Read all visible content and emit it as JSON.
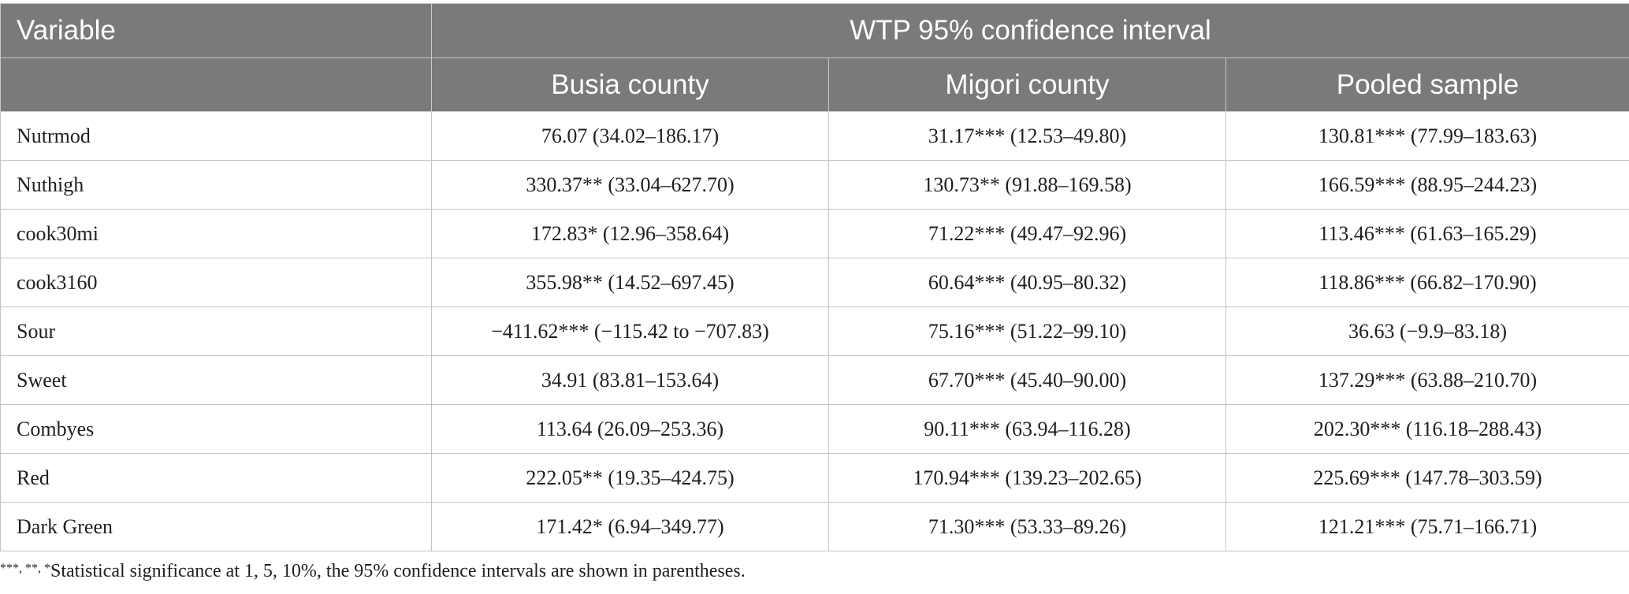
{
  "table": {
    "header_row1": {
      "variable": "Variable",
      "group": "WTP 95% confidence interval"
    },
    "header_row2": [
      "Busia county",
      "Migori county",
      "Pooled sample"
    ],
    "rows": [
      {
        "variable": "Nutrmod",
        "busia": "76.07 (34.02–186.17)",
        "migori": "31.17*** (12.53–49.80)",
        "pooled": "130.81*** (77.99–183.63)"
      },
      {
        "variable": "Nuthigh",
        "busia": "330.37** (33.04–627.70)",
        "migori": "130.73** (91.88–169.58)",
        "pooled": "166.59*** (88.95–244.23)"
      },
      {
        "variable": "cook30mi",
        "busia": "172.83* (12.96–358.64)",
        "migori": "71.22*** (49.47–92.96)",
        "pooled": "113.46*** (61.63–165.29)"
      },
      {
        "variable": "cook3160",
        "busia": "355.98** (14.52–697.45)",
        "migori": "60.64*** (40.95–80.32)",
        "pooled": "118.86*** (66.82–170.90)"
      },
      {
        "variable": "Sour",
        "busia": "−411.62*** (−115.42 to −707.83)",
        "migori": "75.16*** (51.22–99.10)",
        "pooled": "36.63 (−9.9–83.18)"
      },
      {
        "variable": "Sweet",
        "busia": "34.91 (83.81–153.64)",
        "migori": "67.70*** (45.40–90.00)",
        "pooled": "137.29*** (63.88–210.70)"
      },
      {
        "variable": "Combyes",
        "busia": "113.64 (26.09–253.36)",
        "migori": "90.11*** (63.94–116.28)",
        "pooled": "202.30*** (116.18–288.43)"
      },
      {
        "variable": "Red",
        "busia": "222.05** (19.35–424.75)",
        "migori": "170.94*** (139.23–202.65)",
        "pooled": "225.69*** (147.78–303.59)"
      },
      {
        "variable": "Dark Green",
        "busia": "171.42* (6.94–349.77)",
        "migori": "71.30*** (53.33–89.26)",
        "pooled": "121.21*** (75.71–166.71)"
      }
    ]
  },
  "footnote": {
    "marks": "***, **, *",
    "text": "Statistical significance at 1, 5, 10%, the 95% confidence intervals are shown in parentheses."
  },
  "colors": {
    "header_bg": "#7a7b79",
    "header_text": "#ffffff",
    "grid_line": "#c4c4c4",
    "body_text": "#1f1f1f"
  }
}
